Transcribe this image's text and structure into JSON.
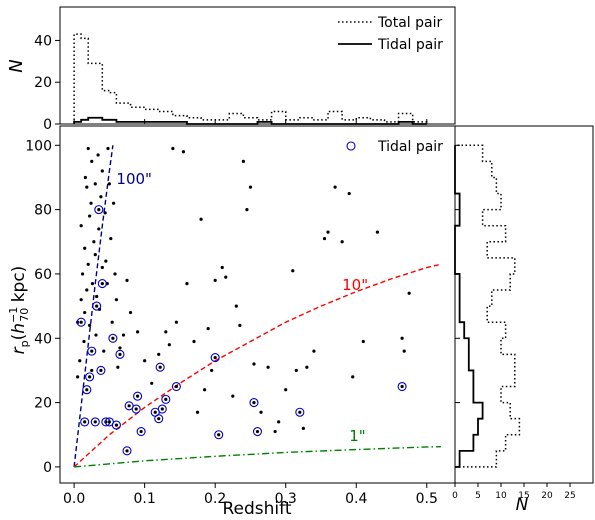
{
  "chart_data": [
    {
      "id": "top",
      "type": "step-histogram",
      "ylabel": "N",
      "xlim": [
        -0.02,
        0.54
      ],
      "ylim": [
        0,
        56
      ],
      "yticks": [
        0,
        20,
        40
      ],
      "bin_edges": [
        0.0,
        0.01,
        0.02,
        0.03,
        0.04,
        0.05,
        0.06,
        0.07,
        0.08,
        0.09,
        0.1,
        0.11,
        0.12,
        0.13,
        0.14,
        0.15,
        0.16,
        0.17,
        0.18,
        0.19,
        0.2,
        0.21,
        0.22,
        0.23,
        0.24,
        0.25,
        0.26,
        0.27,
        0.28,
        0.29,
        0.3,
        0.31,
        0.32,
        0.33,
        0.34,
        0.35,
        0.36,
        0.37,
        0.38,
        0.39,
        0.4,
        0.41,
        0.42,
        0.43,
        0.44,
        0.45,
        0.46,
        0.47,
        0.48,
        0.49,
        0.5
      ],
      "series": [
        {
          "name": "Total pair",
          "style": "dotted",
          "values": [
            43,
            41,
            29,
            29,
            16,
            15,
            10,
            10,
            8,
            8,
            7,
            7,
            6,
            6,
            4,
            4,
            3,
            3,
            2,
            2,
            2,
            2,
            5,
            5,
            3,
            3,
            2,
            2,
            6,
            6,
            2,
            2,
            3,
            3,
            2,
            2,
            6,
            6,
            2,
            2,
            3,
            3,
            2,
            2,
            1,
            1,
            5,
            5,
            1,
            1
          ]
        },
        {
          "name": "Tidal pair",
          "style": "solid",
          "values": [
            1,
            2,
            3,
            3,
            2,
            2,
            1,
            1,
            1,
            1,
            1,
            1,
            1,
            1,
            1,
            1,
            0,
            0,
            0,
            0,
            0,
            0,
            0,
            0,
            0,
            0,
            1,
            1,
            0,
            0,
            0,
            0,
            0,
            0,
            0,
            0,
            0,
            0,
            0,
            0,
            0,
            0,
            0,
            0,
            0,
            0,
            1,
            1,
            0,
            0
          ]
        }
      ],
      "legend": {
        "placement": "top-right",
        "entries": [
          "Total pair",
          "Tidal pair"
        ]
      }
    },
    {
      "id": "main",
      "type": "scatter",
      "xlabel": "Redshift",
      "ylabel": "r_p (h_70^-1 kpc)",
      "xlim": [
        -0.02,
        0.54
      ],
      "ylim": [
        -5,
        106
      ],
      "xticks": [
        0.0,
        0.1,
        0.2,
        0.3,
        0.4,
        0.5
      ],
      "xtick_labels": [
        "0.0",
        "0.1",
        "0.2",
        "0.3",
        "0.4",
        "0.5"
      ],
      "yticks": [
        0,
        20,
        40,
        60,
        80,
        100
      ],
      "series": [
        {
          "name": "Total pair",
          "marker": "dot",
          "points": [
            [
              0.005,
              28
            ],
            [
              0.005,
              45
            ],
            [
              0.008,
              33
            ],
            [
              0.01,
              75
            ],
            [
              0.01,
              52
            ],
            [
              0.012,
              60
            ],
            [
              0.014,
              39
            ],
            [
              0.015,
              48
            ],
            [
              0.015,
              68
            ],
            [
              0.016,
              90
            ],
            [
              0.018,
              87
            ],
            [
              0.018,
              55
            ],
            [
              0.02,
              99
            ],
            [
              0.02,
              63
            ],
            [
              0.022,
              78
            ],
            [
              0.022,
              44
            ],
            [
              0.024,
              82
            ],
            [
              0.025,
              95
            ],
            [
              0.025,
              30
            ],
            [
              0.026,
              57
            ],
            [
              0.028,
              70
            ],
            [
              0.03,
              88
            ],
            [
              0.03,
              66
            ],
            [
              0.031,
              41
            ],
            [
              0.032,
              53
            ],
            [
              0.034,
              97
            ],
            [
              0.035,
              74
            ],
            [
              0.036,
              49
            ],
            [
              0.038,
              84
            ],
            [
              0.04,
              92
            ],
            [
              0.04,
              62
            ],
            [
              0.042,
              36
            ],
            [
              0.044,
              79
            ],
            [
              0.045,
              64
            ],
            [
              0.047,
              57
            ],
            [
              0.048,
              99
            ],
            [
              0.05,
              88
            ],
            [
              0.052,
              71
            ],
            [
              0.054,
              45
            ],
            [
              0.056,
              82
            ],
            [
              0.058,
              60
            ],
            [
              0.06,
              52
            ],
            [
              0.062,
              31
            ],
            [
              0.065,
              37
            ],
            [
              0.07,
              41
            ],
            [
              0.075,
              58
            ],
            [
              0.08,
              48
            ],
            [
              0.09,
              42
            ],
            [
              0.1,
              33
            ],
            [
              0.11,
              26
            ],
            [
              0.12,
              35
            ],
            [
              0.13,
              42
            ],
            [
              0.135,
              38
            ],
            [
              0.14,
              99
            ],
            [
              0.145,
              45
            ],
            [
              0.155,
              98
            ],
            [
              0.16,
              57
            ],
            [
              0.17,
              39
            ],
            [
              0.175,
              17
            ],
            [
              0.18,
              77
            ],
            [
              0.185,
              24
            ],
            [
              0.19,
              43
            ],
            [
              0.195,
              30
            ],
            [
              0.2,
              58
            ],
            [
              0.21,
              62
            ],
            [
              0.215,
              59
            ],
            [
              0.225,
              22
            ],
            [
              0.23,
              50
            ],
            [
              0.235,
              44
            ],
            [
              0.24,
              95
            ],
            [
              0.245,
              80
            ],
            [
              0.25,
              87
            ],
            [
              0.255,
              32
            ],
            [
              0.265,
              17
            ],
            [
              0.275,
              31
            ],
            [
              0.285,
              11
            ],
            [
              0.29,
              14
            ],
            [
              0.3,
              24
            ],
            [
              0.31,
              61
            ],
            [
              0.315,
              30
            ],
            [
              0.325,
              12
            ],
            [
              0.33,
              31
            ],
            [
              0.34,
              36
            ],
            [
              0.355,
              71
            ],
            [
              0.36,
              73
            ],
            [
              0.37,
              87
            ],
            [
              0.38,
              70
            ],
            [
              0.39,
              85
            ],
            [
              0.395,
              28
            ],
            [
              0.41,
              39
            ],
            [
              0.43,
              73
            ],
            [
              0.465,
              40
            ],
            [
              0.468,
              36
            ],
            [
              0.475,
              54
            ]
          ]
        },
        {
          "name": "Tidal pair",
          "marker": "circle-dot",
          "points": [
            [
              0.01,
              45
            ],
            [
              0.015,
              14
            ],
            [
              0.018,
              24
            ],
            [
              0.022,
              28
            ],
            [
              0.025,
              36
            ],
            [
              0.03,
              14
            ],
            [
              0.032,
              50
            ],
            [
              0.035,
              80
            ],
            [
              0.038,
              30
            ],
            [
              0.04,
              57
            ],
            [
              0.045,
              14
            ],
            [
              0.05,
              14
            ],
            [
              0.055,
              40
            ],
            [
              0.06,
              13
            ],
            [
              0.065,
              35
            ],
            [
              0.075,
              5
            ],
            [
              0.078,
              19
            ],
            [
              0.088,
              18
            ],
            [
              0.09,
              22
            ],
            [
              0.095,
              11
            ],
            [
              0.115,
              17
            ],
            [
              0.12,
              15
            ],
            [
              0.122,
              31
            ],
            [
              0.125,
              18
            ],
            [
              0.13,
              21
            ],
            [
              0.145,
              25
            ],
            [
              0.2,
              34
            ],
            [
              0.205,
              10
            ],
            [
              0.255,
              20
            ],
            [
              0.26,
              11
            ],
            [
              0.32,
              17
            ],
            [
              0.465,
              25
            ]
          ]
        }
      ],
      "curves": [
        {
          "name": "100\"",
          "color": "#00008b",
          "style": "dashed",
          "points": [
            [
              0.0,
              0
            ],
            [
              0.01,
              19
            ],
            [
              0.02,
              38
            ],
            [
              0.03,
              57
            ],
            [
              0.04,
              75
            ],
            [
              0.05,
              92
            ],
            [
              0.055,
              100
            ]
          ]
        },
        {
          "name": "10\"",
          "color": "#ff0000",
          "style": "dashed",
          "points": [
            [
              0.0,
              0
            ],
            [
              0.05,
              10
            ],
            [
              0.1,
              18.5
            ],
            [
              0.15,
              26
            ],
            [
              0.2,
              33
            ],
            [
              0.25,
              39
            ],
            [
              0.3,
              45
            ],
            [
              0.35,
              50
            ],
            [
              0.4,
              54.5
            ],
            [
              0.45,
              58.5
            ],
            [
              0.5,
              62
            ],
            [
              0.52,
              63
            ]
          ]
        },
        {
          "name": "1\"",
          "color": "#008000",
          "style": "dashdot",
          "points": [
            [
              0.0,
              0
            ],
            [
              0.1,
              1.9
            ],
            [
              0.2,
              3.3
            ],
            [
              0.3,
              4.5
            ],
            [
              0.4,
              5.4
            ],
            [
              0.5,
              6.2
            ],
            [
              0.52,
              6.3
            ]
          ]
        }
      ],
      "annotations": [
        {
          "text": "100\"",
          "color": "#00008b",
          "x": 0.06,
          "y": 88
        },
        {
          "text": "10\"",
          "color": "#ff0000",
          "x": 0.38,
          "y": 55
        },
        {
          "text": "1\"",
          "color": "#008000",
          "x": 0.39,
          "y": 8
        }
      ],
      "legend": {
        "placement": "top-right",
        "entries": [
          "Tidal pair"
        ]
      }
    },
    {
      "id": "right",
      "type": "step-histogram",
      "orientation": "horizontal",
      "xlabel": "N",
      "xlim": [
        0,
        30
      ],
      "xticks": [
        0,
        5,
        10,
        15,
        20,
        25
      ],
      "ylim": [
        -5,
        106
      ],
      "bin_edges": [
        0,
        5,
        10,
        15,
        20,
        25,
        30,
        35,
        40,
        45,
        50,
        55,
        60,
        65,
        70,
        75,
        80,
        85,
        90,
        95,
        100
      ],
      "series": [
        {
          "name": "Total pair",
          "style": "dotted",
          "values": [
            9,
            11,
            14,
            12,
            10,
            13,
            13,
            10,
            11,
            7,
            8,
            12,
            13,
            7,
            11,
            6,
            10,
            9,
            8,
            6
          ]
        },
        {
          "name": "Tidal pair",
          "style": "solid",
          "values": [
            1,
            4,
            5,
            6,
            4,
            4,
            3,
            3,
            2,
            1,
            1,
            1,
            0,
            0,
            0,
            1,
            1,
            0,
            0,
            0
          ]
        }
      ]
    }
  ],
  "colors": {
    "tidal_marker": "#0000cd",
    "line_100": "#00008b",
    "line_10": "#ff0000",
    "line_1": "#008000"
  }
}
